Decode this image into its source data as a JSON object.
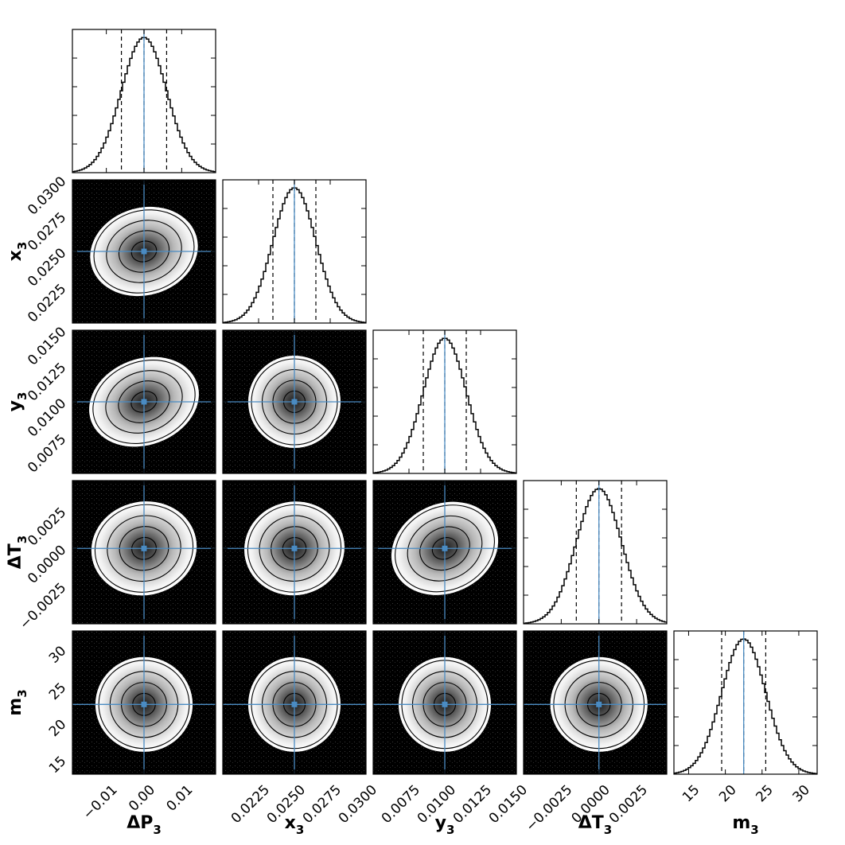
{
  "chart_data": {
    "type": "corner",
    "parameters": [
      {
        "name": "ΔP",
        "sub": "3",
        "range": [
          -0.019,
          0.019
        ],
        "truth": 0.0,
        "sigma": 0.006,
        "quantiles": [
          -0.006,
          0.0,
          0.006
        ],
        "ticks": [
          -0.01,
          0.0,
          0.01
        ],
        "tick_labels": [
          "−0.01",
          "0.00",
          "0.01"
        ]
      },
      {
        "name": "x",
        "sub": "3",
        "range": [
          0.02,
          0.03
        ],
        "truth": 0.025,
        "sigma": 0.0015,
        "quantiles": [
          0.0235,
          0.025,
          0.0265
        ],
        "ticks": [
          0.0225,
          0.025,
          0.0275,
          0.03
        ],
        "tick_labels": [
          "0.0225",
          "0.0250",
          "0.0275",
          "0.0300"
        ]
      },
      {
        "name": "y",
        "sub": "3",
        "range": [
          0.005,
          0.015
        ],
        "truth": 0.01,
        "sigma": 0.0015,
        "quantiles": [
          0.0085,
          0.01,
          0.0115
        ],
        "ticks": [
          0.0075,
          0.01,
          0.0125,
          0.015
        ],
        "tick_labels": [
          "0.0075",
          "0.0100",
          "0.0125",
          "0.0150"
        ]
      },
      {
        "name": "ΔT",
        "sub": "3",
        "range": [
          -0.005,
          0.0045
        ],
        "truth": 0.0,
        "sigma": 0.0015,
        "quantiles": [
          -0.0015,
          0.0,
          0.0015
        ],
        "ticks": [
          -0.0025,
          0.0,
          0.0025
        ],
        "tick_labels": [
          "−0.0025",
          "0.0000",
          "0.0025"
        ]
      },
      {
        "name": "m",
        "sub": "3",
        "range": [
          13.0,
          32.5
        ],
        "truth": 22.5,
        "sigma": 3.0,
        "quantiles": [
          19.5,
          22.5,
          25.5
        ],
        "ticks": [
          15,
          20,
          25,
          30
        ],
        "tick_labels": [
          "15",
          "20",
          "25",
          "30"
        ]
      }
    ],
    "correlations": [
      [
        0,
        0,
        0,
        0,
        0
      ],
      [
        0.35,
        0,
        0,
        0,
        0
      ],
      [
        0.45,
        0.0,
        0,
        0,
        0
      ],
      [
        0.25,
        0.25,
        0.55,
        0,
        0
      ],
      [
        0.0,
        0.0,
        0.0,
        0.0,
        0
      ]
    ],
    "contour_levels_sigma": [
      0.5,
      1.0,
      1.5,
      2.0
    ],
    "colors": {
      "truth": "#4a8bc2",
      "contour": "#000000",
      "density_high": "#222222",
      "density_low": "#ffffff",
      "background": "#000000"
    },
    "grid": false,
    "legend": "none"
  }
}
